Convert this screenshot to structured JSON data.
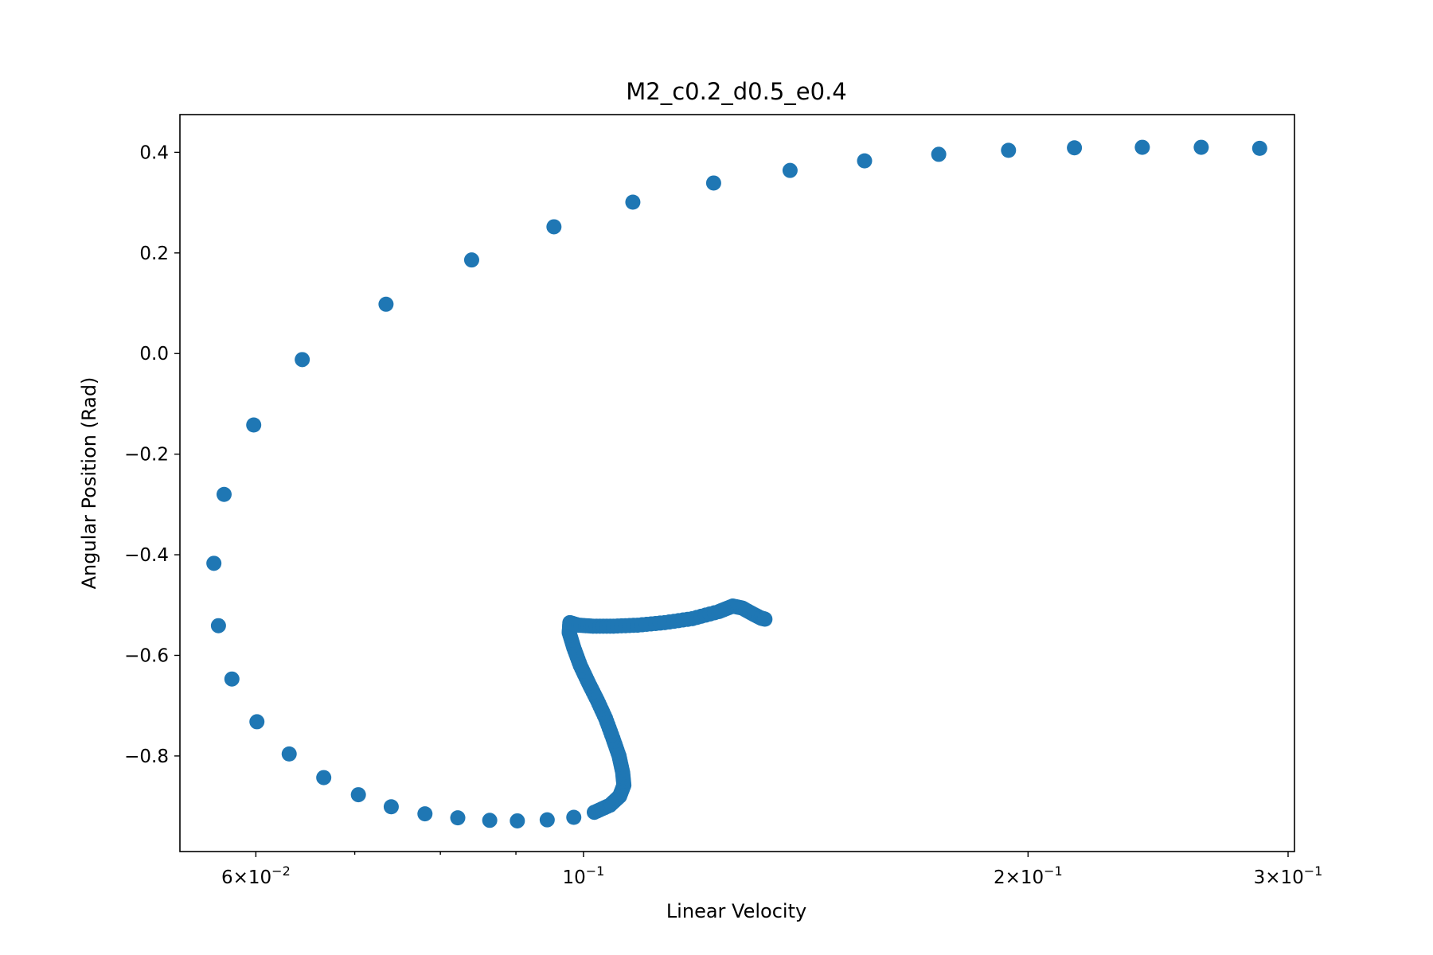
{
  "chart_data": {
    "type": "scatter",
    "title": "M2_c0.2_d0.5_e0.4",
    "xlabel": "Linear Velocity",
    "ylabel": "Angular Position (Rad)",
    "xscale": "log",
    "xlim": [
      0.0533,
      0.303
    ],
    "ylim": [
      -0.99,
      0.475
    ],
    "grid": false,
    "legend": "none",
    "color": "#1f77b4",
    "xticks_major": [
      {
        "value": 0.06,
        "mant": "6",
        "exp": "−2"
      },
      {
        "value": 0.1,
        "mant": "",
        "exp": "−1"
      },
      {
        "value": 0.2,
        "mant": "2",
        "exp": "−1"
      },
      {
        "value": 0.3,
        "mant": "3",
        "exp": "−1"
      }
    ],
    "xticks_minor": [
      0.07,
      0.08,
      0.09
    ],
    "yticks": [
      {
        "value": 0.4,
        "label": "0.4"
      },
      {
        "value": 0.2,
        "label": "0.2"
      },
      {
        "value": 0.0,
        "label": "0.0"
      },
      {
        "value": -0.2,
        "label": "−0.2"
      },
      {
        "value": -0.4,
        "label": "−0.4"
      },
      {
        "value": -0.6,
        "label": "−0.6"
      },
      {
        "value": -0.8,
        "label": "−0.8"
      }
    ],
    "series": [
      {
        "x": [
          0.287,
          0.262,
          0.239,
          0.215,
          0.194,
          0.174,
          0.155,
          0.138,
          0.1225,
          0.108,
          0.0955,
          0.084,
          0.0735,
          0.0645,
          0.0598,
          0.0571,
          0.0562,
          0.0566,
          0.0578,
          0.0601,
          0.0632,
          0.0667,
          0.0704,
          0.0741,
          0.0781,
          0.0822,
          0.0864,
          0.0902,
          0.0945,
          0.0985,
          0.1017,
          0.1042,
          0.1058,
          0.1065,
          0.1063,
          0.1057,
          0.1047,
          0.1035,
          0.1022,
          0.1008,
          0.0995,
          0.0985,
          0.0978,
          0.0979,
          0.0992,
          0.1015,
          0.1048,
          0.1088,
          0.1135,
          0.1185,
          0.1235,
          0.1262,
          0.1281,
          0.1303,
          0.1319,
          0.1327
        ],
        "y": [
          0.408,
          0.41,
          0.41,
          0.409,
          0.404,
          0.396,
          0.383,
          0.364,
          0.339,
          0.301,
          0.252,
          0.186,
          0.098,
          -0.012,
          -0.142,
          -0.28,
          -0.417,
          -0.541,
          -0.647,
          -0.732,
          -0.796,
          -0.843,
          -0.877,
          -0.901,
          -0.915,
          -0.923,
          -0.928,
          -0.929,
          -0.927,
          -0.922,
          -0.912,
          -0.898,
          -0.88,
          -0.858,
          -0.833,
          -0.8,
          -0.765,
          -0.725,
          -0.69,
          -0.655,
          -0.62,
          -0.585,
          -0.555,
          -0.535,
          -0.54,
          -0.542,
          -0.542,
          -0.54,
          -0.535,
          -0.527,
          -0.513,
          -0.502,
          -0.506,
          -0.518,
          -0.526,
          -0.528
        ]
      }
    ]
  }
}
